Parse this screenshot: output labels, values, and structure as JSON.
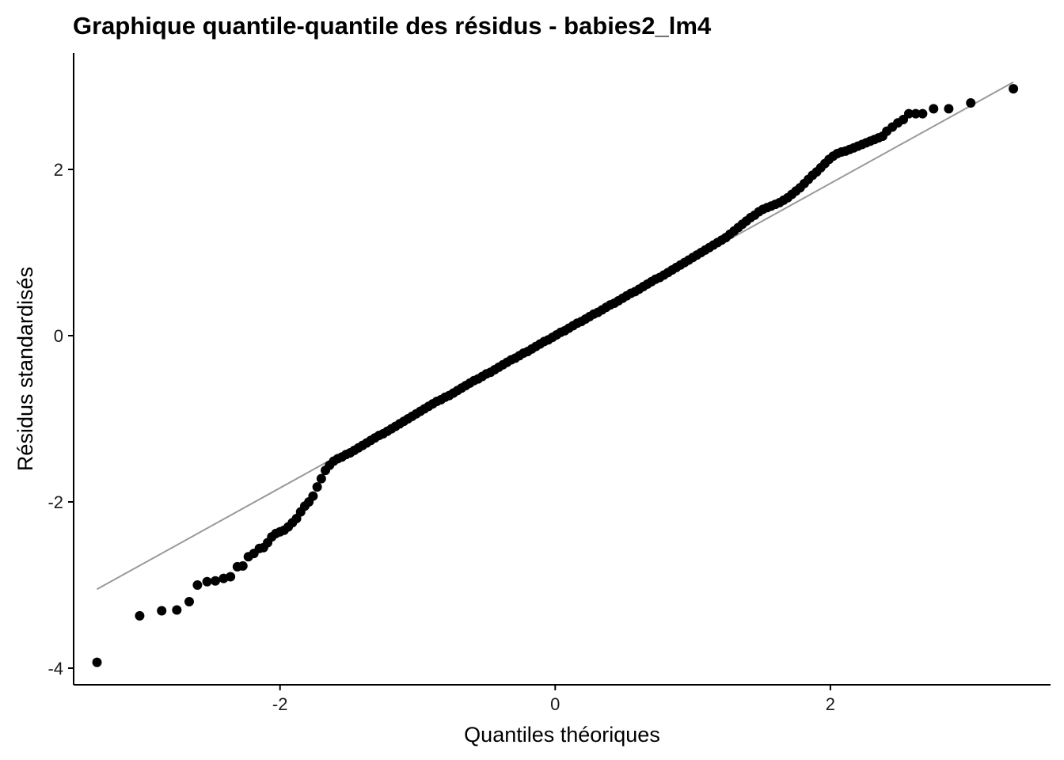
{
  "chart_data": {
    "type": "scatter",
    "title": "Graphique quantile-quantile des résidus - babies2_lm4",
    "xlabel": "Quantiles théoriques",
    "ylabel": "Résidus standardisés",
    "xlim": [
      -3.5,
      3.6
    ],
    "ylim": [
      -4.2,
      3.4
    ],
    "x_ticks": [
      -2,
      0,
      2
    ],
    "x_tick_labels": [
      "-2",
      "0",
      "2"
    ],
    "y_ticks": [
      -4,
      -2,
      0,
      2
    ],
    "y_tick_labels": [
      "-4",
      "-2",
      "0",
      "2"
    ],
    "grid": false,
    "legend": "none",
    "colors": {
      "points": "#000000",
      "reference_line": "#999999",
      "axis": "#000000"
    },
    "reference_line": {
      "x": [
        -3.33,
        3.33
      ],
      "y": [
        -3.05,
        3.05
      ]
    },
    "points": [
      [
        -3.33,
        -3.93
      ],
      [
        -3.02,
        -3.37
      ],
      [
        -2.86,
        -3.31
      ],
      [
        -2.75,
        -3.3
      ],
      [
        -2.66,
        -3.2
      ],
      [
        -2.6,
        -3.0
      ],
      [
        -2.53,
        -2.96
      ],
      [
        -2.47,
        -2.95
      ],
      [
        -2.41,
        -2.92
      ],
      [
        -2.36,
        -2.9
      ],
      [
        -2.31,
        -2.78
      ],
      [
        -2.27,
        -2.77
      ],
      [
        -2.23,
        -2.66
      ],
      [
        -2.19,
        -2.62
      ],
      [
        -2.15,
        -2.56
      ],
      [
        -2.12,
        -2.55
      ],
      [
        -2.09,
        -2.49
      ],
      [
        -2.06,
        -2.42
      ],
      [
        -2.03,
        -2.38
      ],
      [
        -2.0,
        -2.36
      ],
      [
        -1.97,
        -2.34
      ],
      [
        -1.94,
        -2.3
      ],
      [
        -1.91,
        -2.25
      ],
      [
        -1.88,
        -2.2
      ],
      [
        -1.85,
        -2.12
      ],
      [
        -1.82,
        -2.05
      ],
      [
        -1.79,
        -2.0
      ],
      [
        -1.76,
        -1.93
      ],
      [
        -1.73,
        -1.82
      ],
      [
        -1.7,
        -1.72
      ],
      [
        -1.67,
        -1.62
      ],
      [
        -1.64,
        -1.56
      ],
      [
        -1.61,
        -1.51
      ],
      [
        -1.58,
        -1.48
      ],
      [
        -1.55,
        -1.46
      ],
      [
        -1.52,
        -1.43
      ],
      [
        -1.49,
        -1.41
      ],
      [
        -1.46,
        -1.38
      ],
      [
        -1.43,
        -1.35
      ],
      [
        -1.4,
        -1.32
      ],
      [
        -1.37,
        -1.29
      ],
      [
        -1.34,
        -1.26
      ],
      [
        -1.31,
        -1.23
      ],
      [
        -1.28,
        -1.2
      ],
      [
        -1.25,
        -1.18
      ],
      [
        -1.22,
        -1.15
      ],
      [
        -1.19,
        -1.12
      ],
      [
        -1.16,
        -1.09
      ],
      [
        -1.13,
        -1.06
      ],
      [
        -1.1,
        -1.03
      ],
      [
        -1.07,
        -1.0
      ],
      [
        -1.04,
        -0.97
      ],
      [
        -1.01,
        -0.94
      ],
      [
        -0.98,
        -0.91
      ],
      [
        -0.95,
        -0.88
      ],
      [
        -0.92,
        -0.85
      ],
      [
        -0.89,
        -0.82
      ],
      [
        -0.86,
        -0.79
      ],
      [
        -0.83,
        -0.77
      ],
      [
        -0.8,
        -0.74
      ],
      [
        -0.77,
        -0.72
      ],
      [
        -0.74,
        -0.69
      ],
      [
        -0.71,
        -0.66
      ],
      [
        -0.68,
        -0.63
      ],
      [
        -0.65,
        -0.6
      ],
      [
        -0.62,
        -0.57
      ],
      [
        -0.59,
        -0.54
      ],
      [
        -0.56,
        -0.52
      ],
      [
        -0.53,
        -0.49
      ],
      [
        -0.5,
        -0.46
      ],
      [
        -0.47,
        -0.44
      ],
      [
        -0.44,
        -0.41
      ],
      [
        -0.41,
        -0.38
      ],
      [
        -0.38,
        -0.35
      ],
      [
        -0.35,
        -0.32
      ],
      [
        -0.32,
        -0.29
      ],
      [
        -0.29,
        -0.27
      ],
      [
        -0.26,
        -0.24
      ],
      [
        -0.23,
        -0.21
      ],
      [
        -0.2,
        -0.19
      ],
      [
        -0.17,
        -0.16
      ],
      [
        -0.14,
        -0.13
      ],
      [
        -0.11,
        -0.1
      ],
      [
        -0.08,
        -0.07
      ],
      [
        -0.05,
        -0.05
      ],
      [
        -0.02,
        -0.02
      ],
      [
        0.01,
        0.01
      ],
      [
        0.04,
        0.04
      ],
      [
        0.07,
        0.06
      ],
      [
        0.1,
        0.09
      ],
      [
        0.13,
        0.12
      ],
      [
        0.16,
        0.15
      ],
      [
        0.19,
        0.17
      ],
      [
        0.22,
        0.2
      ],
      [
        0.25,
        0.23
      ],
      [
        0.28,
        0.26
      ],
      [
        0.31,
        0.28
      ],
      [
        0.34,
        0.31
      ],
      [
        0.37,
        0.34
      ],
      [
        0.4,
        0.37
      ],
      [
        0.43,
        0.39
      ],
      [
        0.46,
        0.42
      ],
      [
        0.49,
        0.45
      ],
      [
        0.52,
        0.48
      ],
      [
        0.55,
        0.51
      ],
      [
        0.58,
        0.53
      ],
      [
        0.61,
        0.56
      ],
      [
        0.64,
        0.59
      ],
      [
        0.67,
        0.62
      ],
      [
        0.7,
        0.65
      ],
      [
        0.73,
        0.68
      ],
      [
        0.76,
        0.7
      ],
      [
        0.79,
        0.73
      ],
      [
        0.82,
        0.76
      ],
      [
        0.85,
        0.79
      ],
      [
        0.88,
        0.82
      ],
      [
        0.91,
        0.85
      ],
      [
        0.94,
        0.88
      ],
      [
        0.97,
        0.91
      ],
      [
        1.0,
        0.94
      ],
      [
        1.03,
        0.97
      ],
      [
        1.06,
        1.0
      ],
      [
        1.09,
        1.03
      ],
      [
        1.12,
        1.06
      ],
      [
        1.15,
        1.09
      ],
      [
        1.18,
        1.12
      ],
      [
        1.21,
        1.15
      ],
      [
        1.24,
        1.18
      ],
      [
        1.27,
        1.22
      ],
      [
        1.3,
        1.26
      ],
      [
        1.33,
        1.3
      ],
      [
        1.36,
        1.34
      ],
      [
        1.39,
        1.38
      ],
      [
        1.42,
        1.42
      ],
      [
        1.45,
        1.45
      ],
      [
        1.48,
        1.49
      ],
      [
        1.51,
        1.52
      ],
      [
        1.54,
        1.54
      ],
      [
        1.57,
        1.56
      ],
      [
        1.6,
        1.58
      ],
      [
        1.63,
        1.6
      ],
      [
        1.66,
        1.63
      ],
      [
        1.69,
        1.66
      ],
      [
        1.72,
        1.7
      ],
      [
        1.75,
        1.74
      ],
      [
        1.78,
        1.78
      ],
      [
        1.81,
        1.83
      ],
      [
        1.84,
        1.88
      ],
      [
        1.87,
        1.93
      ],
      [
        1.9,
        1.97
      ],
      [
        1.93,
        2.02
      ],
      [
        1.96,
        2.07
      ],
      [
        1.99,
        2.12
      ],
      [
        2.02,
        2.16
      ],
      [
        2.05,
        2.19
      ],
      [
        2.08,
        2.21
      ],
      [
        2.11,
        2.22
      ],
      [
        2.14,
        2.24
      ],
      [
        2.17,
        2.26
      ],
      [
        2.2,
        2.28
      ],
      [
        2.23,
        2.3
      ],
      [
        2.26,
        2.32
      ],
      [
        2.29,
        2.34
      ],
      [
        2.32,
        2.36
      ],
      [
        2.35,
        2.38
      ],
      [
        2.38,
        2.4
      ],
      [
        2.41,
        2.46
      ],
      [
        2.45,
        2.51
      ],
      [
        2.49,
        2.56
      ],
      [
        2.53,
        2.6
      ],
      [
        2.57,
        2.67
      ],
      [
        2.62,
        2.67
      ],
      [
        2.67,
        2.67
      ],
      [
        2.75,
        2.73
      ],
      [
        2.86,
        2.73
      ],
      [
        3.02,
        2.8
      ],
      [
        3.33,
        2.97
      ]
    ]
  }
}
